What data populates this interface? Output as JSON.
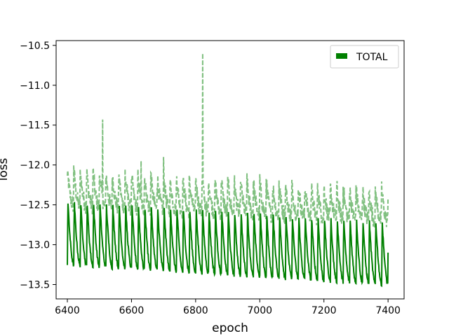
{
  "chart_data": {
    "type": "line",
    "title": "",
    "xlabel": "epoch",
    "ylabel": "loss",
    "xlim": [
      6365,
      7450
    ],
    "ylim": [
      -13.68,
      -10.44
    ],
    "x_ticks": [
      6400,
      6600,
      6800,
      7000,
      7200,
      7400
    ],
    "y_ticks": [
      -10.5,
      -11.0,
      -11.5,
      -12.0,
      -12.5,
      -13.0,
      -13.5
    ],
    "grid": false,
    "legend": {
      "placement": "top-right",
      "entries": [
        "TOTAL"
      ]
    },
    "colors": {
      "train": "#008000",
      "validation": "#80c080"
    },
    "series": [
      {
        "name": "TOTAL",
        "style": "solid",
        "period_epochs": 20,
        "x_range": [
          6400,
          7400
        ],
        "peak_start": -12.45,
        "peak_end": -12.7,
        "trough_start": -13.25,
        "trough_end": -13.5,
        "final_value": -13.1
      },
      {
        "style": "dashed",
        "period_epochs": 20,
        "x_range": [
          6400,
          7400
        ],
        "peak_start": -12.05,
        "peak_end": -12.3,
        "trough_start": -12.5,
        "trough_end": -12.7,
        "spikes": [
          {
            "x": 6510,
            "y": -11.43
          },
          {
            "x": 6822,
            "y": -10.6
          },
          {
            "x": 6700,
            "y": -11.9
          },
          {
            "x": 6630,
            "y": -11.95
          }
        ]
      }
    ]
  }
}
